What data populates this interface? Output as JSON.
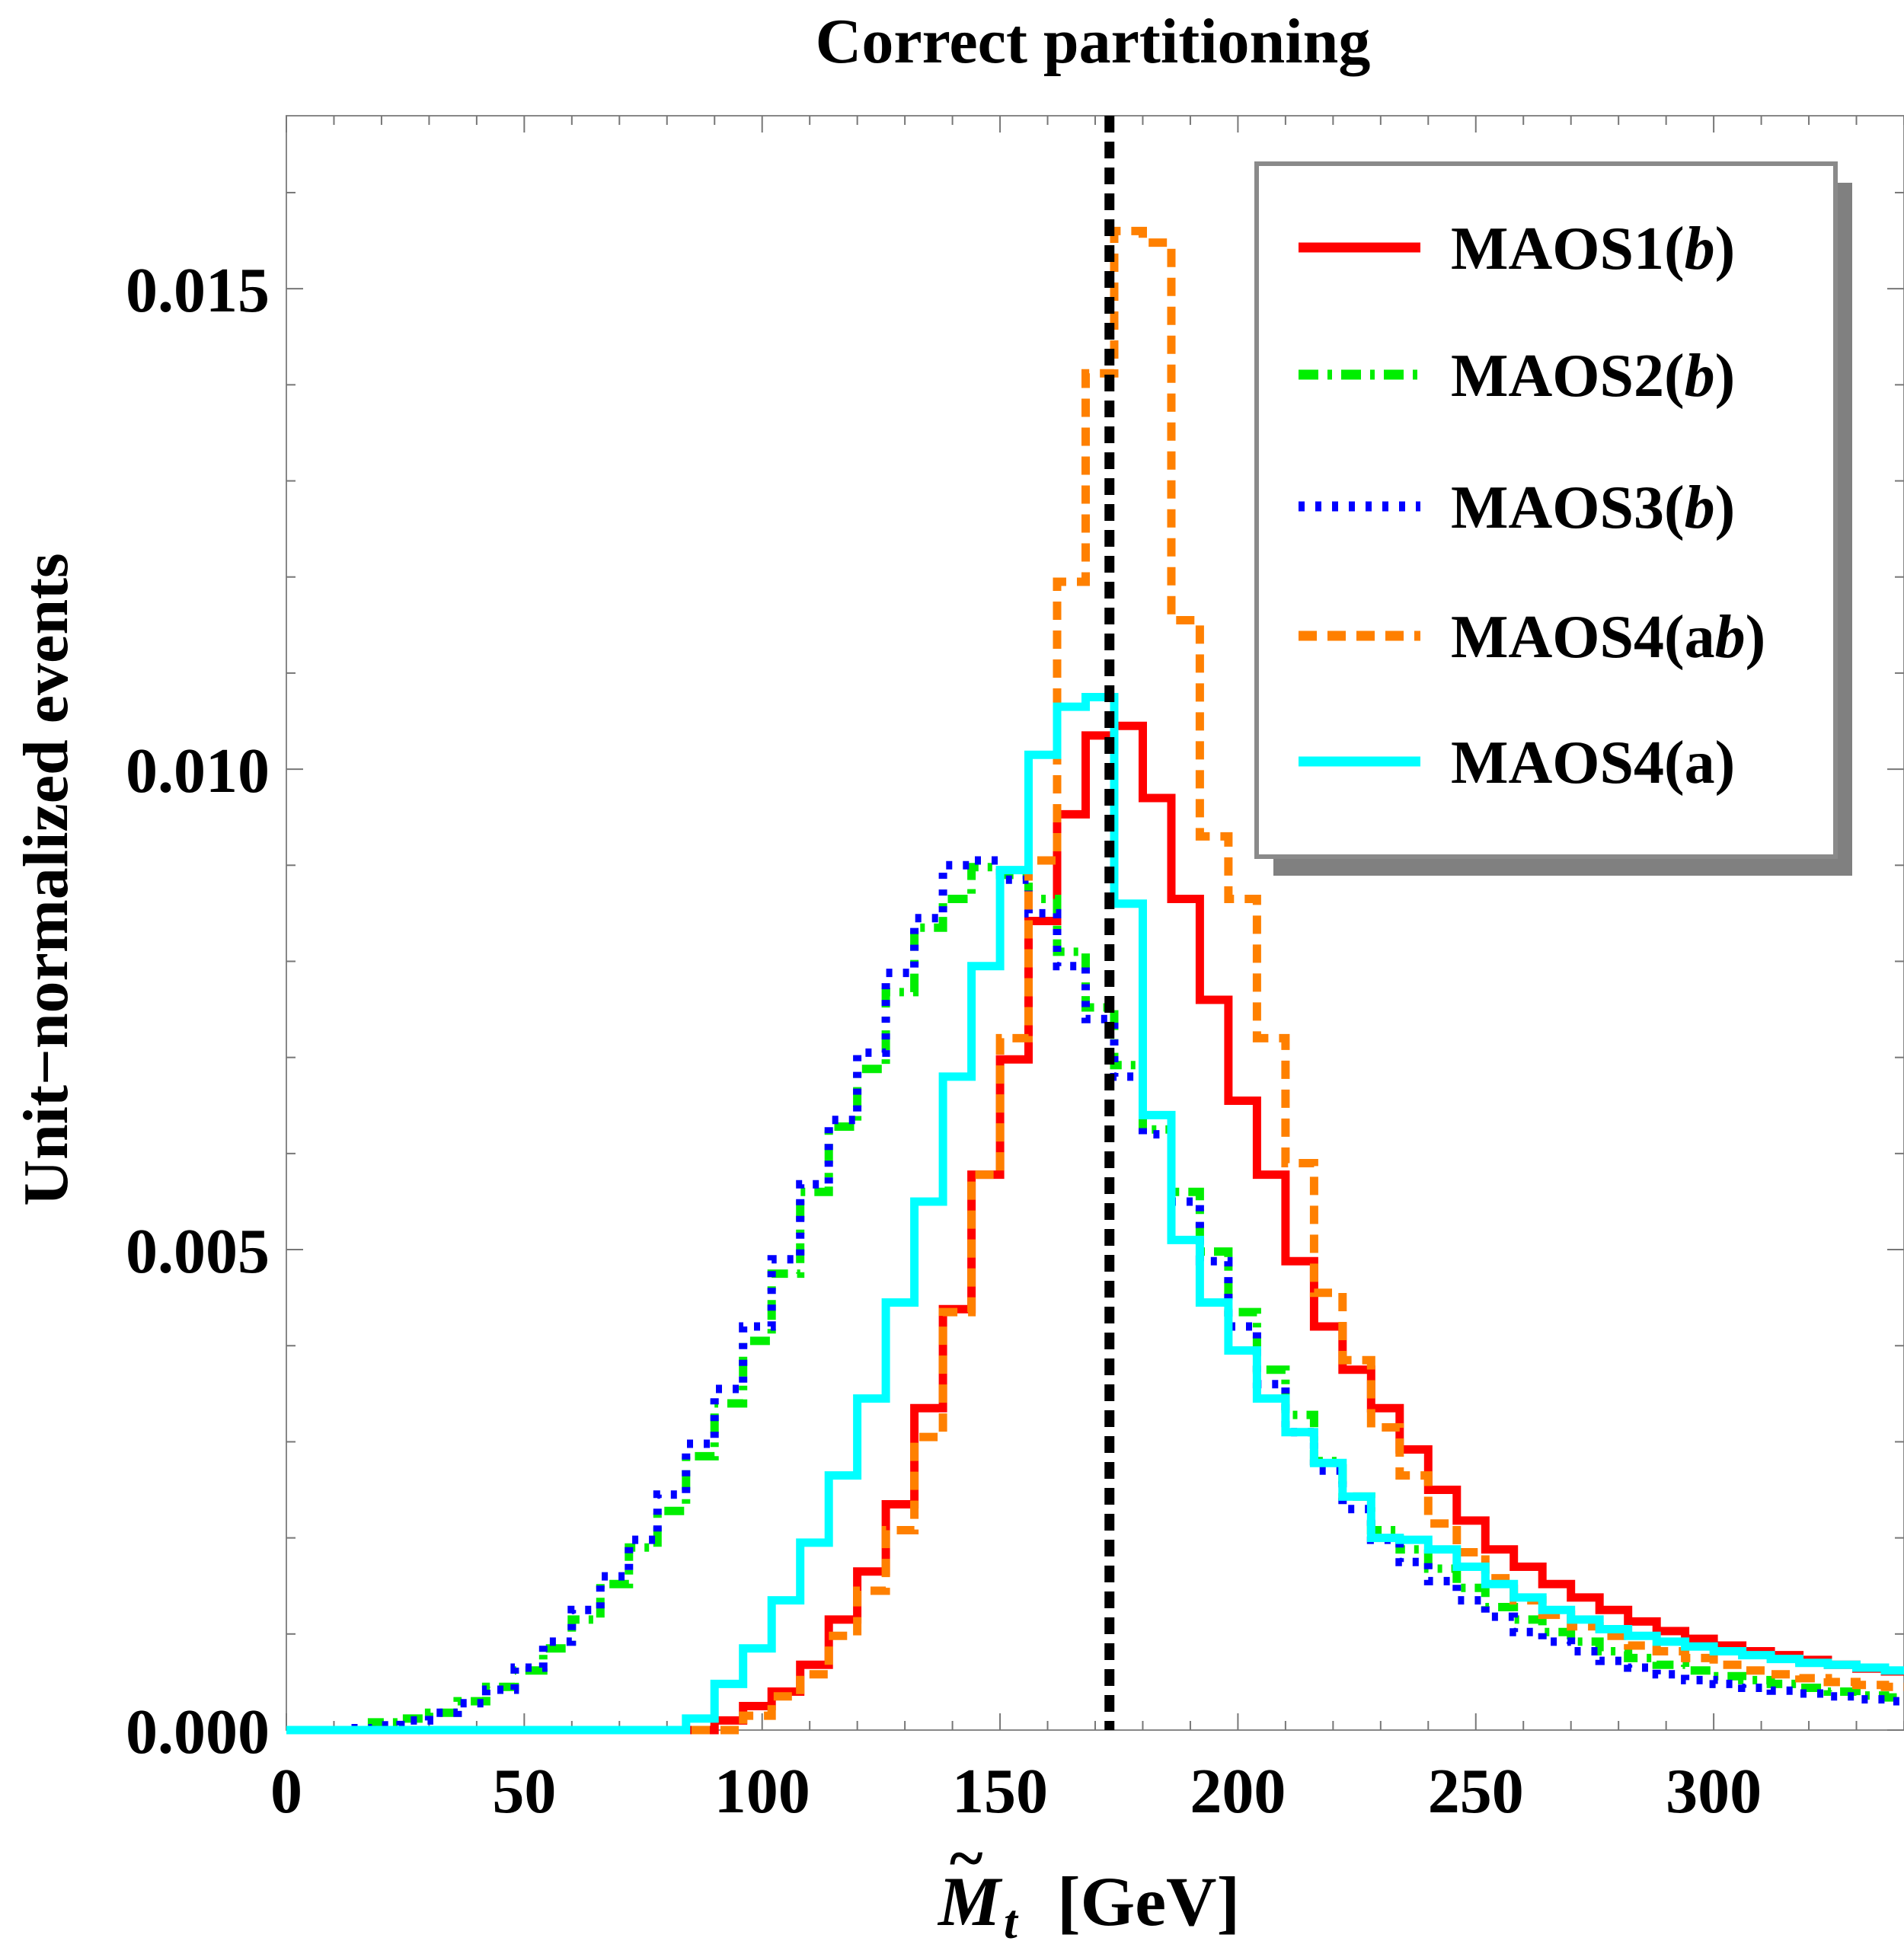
{
  "chart_data": {
    "type": "line",
    "title": "Correct partitioning",
    "xlabel_symbol": "M",
    "xlabel_tilde": "~",
    "xlabel_subscript": "t",
    "xlabel_unit": "[GeV]",
    "ylabel": "Unit−normalized events",
    "xlim": [
      0,
      340
    ],
    "ylim": [
      0,
      0.0168
    ],
    "xticks": [
      0,
      50,
      100,
      150,
      200,
      250,
      300
    ],
    "xtick_labels": [
      "0",
      "50",
      "100",
      "150",
      "200",
      "250",
      "300"
    ],
    "yticks": [
      0,
      0.005,
      0.01,
      0.015
    ],
    "ytick_labels": [
      "0.000",
      "0.005",
      "0.010",
      "0.015"
    ],
    "bin_width": 6,
    "bin_start": 0,
    "reference_line": {
      "x": 173,
      "color": "#000000"
    },
    "legend_position": "top-right",
    "series": [
      {
        "name": "MAOS1(",
        "name_italic": "b",
        "name_end": ")",
        "color": "#ff0000",
        "style": "solid",
        "values": [
          0,
          0,
          0,
          0,
          0,
          0,
          0,
          0,
          0,
          0,
          0,
          0,
          0,
          0,
          0,
          0.0001,
          0.00025,
          0.0004,
          0.00068,
          0.00115,
          0.00165,
          0.00235,
          0.00335,
          0.00438,
          0.00578,
          0.00698,
          0.00842,
          0.00953,
          0.01035,
          0.01045,
          0.0097,
          0.00865,
          0.0076,
          0.00655,
          0.00578,
          0.00488,
          0.0042,
          0.00375,
          0.00335,
          0.00292,
          0.0025,
          0.00218,
          0.00188,
          0.0017,
          0.00152,
          0.00138,
          0.00125,
          0.00113,
          0.00103,
          0.00095,
          0.00088,
          0.00082,
          0.00078,
          0.00073,
          0.00068,
          0.00064,
          0.00061
        ]
      },
      {
        "name": "MAOS2(",
        "name_italic": "b",
        "name_end": ")",
        "color": "#00ee00",
        "style": "dashdot",
        "values": [
          0,
          0,
          0,
          8e-05,
          0.00012,
          0.00018,
          0.0003,
          0.00045,
          0.00062,
          0.00085,
          0.00115,
          0.00152,
          0.0019,
          0.00228,
          0.00285,
          0.0034,
          0.00405,
          0.00475,
          0.0056,
          0.00628,
          0.00688,
          0.00768,
          0.00835,
          0.00865,
          0.00898,
          0.0089,
          0.00865,
          0.0081,
          0.00752,
          0.00692,
          0.00625,
          0.0056,
          0.00498,
          0.00435,
          0.00375,
          0.00328,
          0.0028,
          0.00243,
          0.00208,
          0.00188,
          0.00168,
          0.00148,
          0.00128,
          0.00115,
          0.00102,
          0.00092,
          0.00082,
          0.00075,
          0.00068,
          0.00062,
          0.00056,
          0.00052,
          0.00048,
          0.00044,
          0.0004,
          0.00036,
          0.00034
        ]
      },
      {
        "name": "MAOS3(",
        "name_italic": "b",
        "name_end": ")",
        "color": "#0000ff",
        "style": "dotted",
        "values": [
          0,
          0,
          2e-05,
          5e-05,
          0.0001,
          0.00018,
          0.00028,
          0.00042,
          0.00065,
          0.00092,
          0.00125,
          0.0016,
          0.00198,
          0.00245,
          0.00298,
          0.00355,
          0.0042,
          0.0049,
          0.00568,
          0.00635,
          0.00705,
          0.00788,
          0.00845,
          0.009,
          0.00905,
          0.00885,
          0.0085,
          0.00795,
          0.0074,
          0.0068,
          0.0062,
          0.0055,
          0.00488,
          0.0042,
          0.0036,
          0.0031,
          0.0027,
          0.0023,
          0.00198,
          0.00175,
          0.00155,
          0.00135,
          0.00118,
          0.00102,
          0.00092,
          0.00082,
          0.00072,
          0.00065,
          0.00058,
          0.00052,
          0.00048,
          0.00044,
          0.00041,
          0.00038,
          0.00035,
          0.00032,
          0.0003
        ]
      },
      {
        "name": "MAOS4(a",
        "name_italic": "b",
        "name_end": ")",
        "color": "#ff8000",
        "style": "dashed",
        "values": [
          0,
          0,
          0,
          0,
          0,
          0,
          0,
          0,
          0,
          0,
          0,
          0,
          0,
          0,
          0,
          0,
          0.00015,
          0.00035,
          0.00058,
          0.00098,
          0.00145,
          0.00208,
          0.00305,
          0.00435,
          0.00578,
          0.0072,
          0.00905,
          0.01195,
          0.01412,
          0.0156,
          0.01548,
          0.01155,
          0.0093,
          0.00865,
          0.0072,
          0.0059,
          0.00455,
          0.00385,
          0.00315,
          0.00265,
          0.00215,
          0.00185,
          0.00158,
          0.00135,
          0.0012,
          0.00108,
          0.00098,
          0.00088,
          0.00082,
          0.00075,
          0.00068,
          0.00062,
          0.00058,
          0.00054,
          0.0005,
          0.00047,
          0.00045
        ]
      },
      {
        "name": "MAOS4(a)",
        "name_italic": "",
        "name_end": "",
        "color": "#00ffff",
        "style": "solid",
        "values": [
          0,
          0,
          0,
          0,
          0,
          0,
          0,
          0,
          0,
          0,
          0,
          0,
          0,
          0,
          0.00012,
          0.00048,
          0.00085,
          0.00135,
          0.00195,
          0.00265,
          0.00345,
          0.00445,
          0.0055,
          0.0068,
          0.00795,
          0.00895,
          0.01015,
          0.01065,
          0.01075,
          0.0086,
          0.0064,
          0.0051,
          0.00445,
          0.00395,
          0.00345,
          0.0031,
          0.00278,
          0.00243,
          0.002,
          0.00198,
          0.00188,
          0.0017,
          0.00152,
          0.00138,
          0.00125,
          0.00115,
          0.00105,
          0.00098,
          0.00092,
          0.00087,
          0.00082,
          0.00078,
          0.00074,
          0.0007,
          0.00068,
          0.00065,
          0.00062
        ]
      }
    ]
  }
}
